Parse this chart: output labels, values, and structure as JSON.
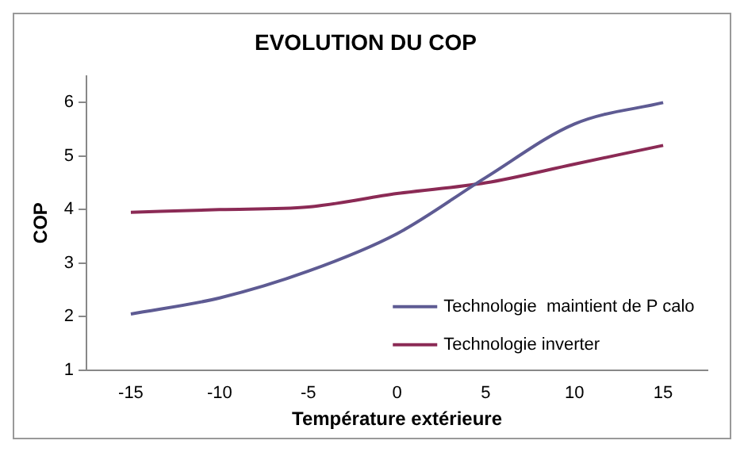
{
  "chart_data": {
    "type": "line",
    "title": "EVOLUTION DU COP",
    "xlabel": "Température extérieure",
    "ylabel": "COP",
    "categories": [
      "-15",
      "-10",
      "-5",
      "0",
      "5",
      "10",
      "15"
    ],
    "series": [
      {
        "name": "Technologie  maintient de P calo",
        "color": "#5e5b93",
        "values": [
          2.05,
          2.35,
          2.85,
          3.55,
          4.6,
          5.6,
          6.0
        ]
      },
      {
        "name": "Technologie inverter",
        "color": "#8b2a55",
        "values": [
          3.95,
          4.0,
          4.05,
          4.3,
          4.5,
          4.85,
          5.2
        ]
      }
    ],
    "ylim": [
      1,
      6.5
    ],
    "yticks": [
      1,
      2,
      3,
      4,
      5,
      6
    ],
    "grid": false,
    "legend": "bottom right",
    "marker": "none",
    "line_style": "solid"
  }
}
